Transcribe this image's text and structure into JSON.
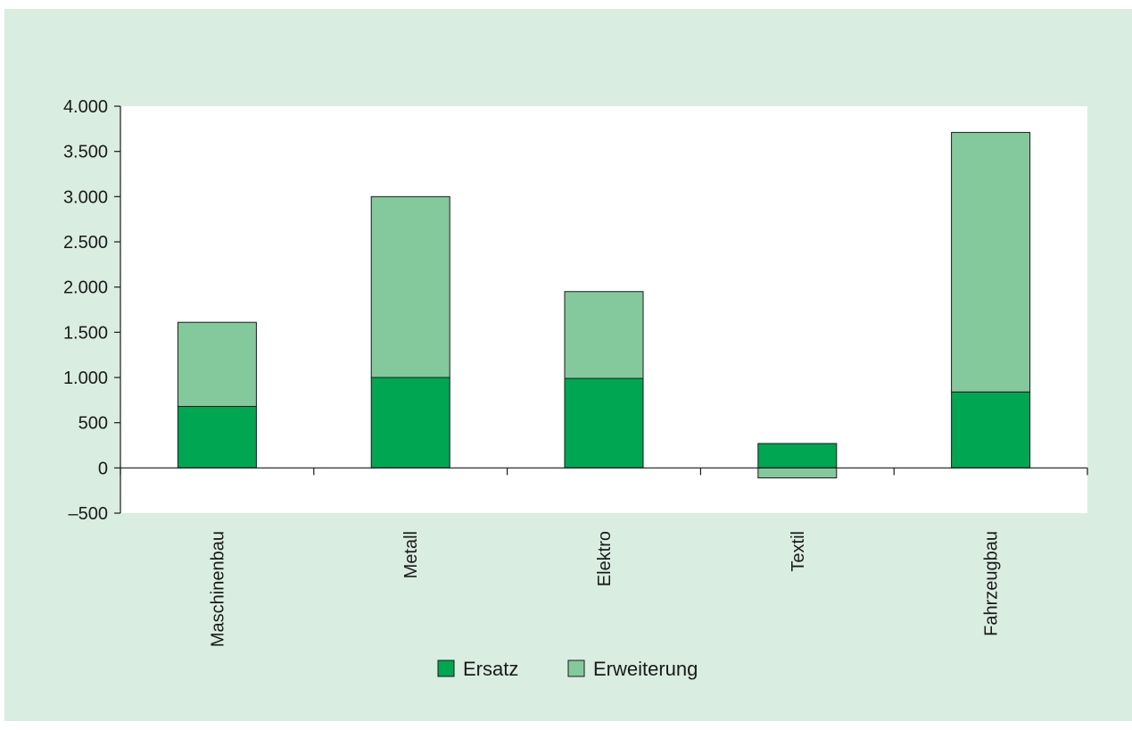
{
  "chart_data": {
    "type": "bar",
    "stacked": true,
    "categories": [
      "Maschinenbau",
      "Metall",
      "Elektro",
      "Textil",
      "Fahrzeugbau"
    ],
    "series": [
      {
        "name": "Ersatz",
        "values": [
          680,
          1000,
          990,
          270,
          840
        ],
        "color": "#00a651"
      },
      {
        "name": "Erweiterung",
        "values": [
          930,
          2000,
          960,
          -110,
          2870
        ],
        "color": "#84c99c"
      }
    ],
    "ylim": [
      -500,
      4000
    ],
    "yticks": [
      -500,
      0,
      500,
      1000,
      1500,
      2000,
      2500,
      3000,
      3500,
      4000
    ],
    "ytick_labels": [
      "–500",
      "0",
      "500",
      "1.000",
      "1.500",
      "2.000",
      "2.500",
      "3.000",
      "3.500",
      "4.000"
    ],
    "legend_position": "bottom",
    "grid": false,
    "colors": {
      "frame_background": "#d9ede0",
      "plot_background": "#ffffff",
      "axis": "#1a1a1a"
    }
  }
}
